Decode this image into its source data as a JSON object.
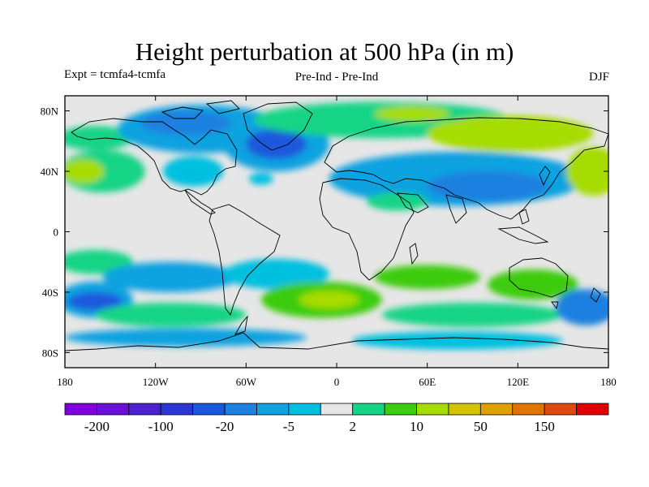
{
  "title": "Height perturbation at 500 hPa (in m)",
  "experiment": "Expt = tcmfa4-tcmfa",
  "comparison": "Pre-Ind - Pre-Ind",
  "season": "DJF",
  "map": {
    "lon_range": [
      -180,
      180
    ],
    "lat_range": [
      -90,
      90
    ],
    "x_tick_labels": [
      "180",
      "120W",
      "60W",
      "0",
      "60E",
      "120E",
      "180"
    ],
    "x_tick_lons": [
      -180,
      -120,
      -60,
      0,
      60,
      120,
      180
    ],
    "y_tick_labels": [
      "80N",
      "40N",
      "0",
      "40S",
      "80S"
    ],
    "y_tick_lats": [
      80,
      40,
      0,
      -40,
      -80
    ],
    "background_color": "#e6e6e6"
  },
  "colorbar": {
    "colors": [
      "#7f00dc",
      "#6a0ed8",
      "#4a20d0",
      "#2a36d6",
      "#1a58dc",
      "#1e80e0",
      "#10a2e0",
      "#00c0e0",
      "#e6e6e6",
      "#14d486",
      "#3ccc10",
      "#a6dc00",
      "#d4c400",
      "#e0a000",
      "#e07400",
      "#e04a10",
      "#e00000"
    ],
    "labels": [
      "-200",
      "-100",
      "-20",
      "-5",
      "2",
      "10",
      "50",
      "150"
    ]
  },
  "anomalies": [
    {
      "lon": -160,
      "lat": 62,
      "rx": 25,
      "ry": 8,
      "color": "#14d486"
    },
    {
      "lon": -155,
      "lat": 40,
      "rx": 28,
      "ry": 14,
      "color": "#14d486"
    },
    {
      "lon": -168,
      "lat": 40,
      "rx": 14,
      "ry": 8,
      "color": "#a6dc00"
    },
    {
      "lon": -90,
      "lat": 68,
      "rx": 55,
      "ry": 16,
      "color": "#10a2e0"
    },
    {
      "lon": -100,
      "lat": 72,
      "rx": 30,
      "ry": 8,
      "color": "#1e80e0"
    },
    {
      "lon": -40,
      "lat": 58,
      "rx": 35,
      "ry": 18,
      "color": "#10a2e0"
    },
    {
      "lon": -40,
      "lat": 58,
      "rx": 20,
      "ry": 10,
      "color": "#1a58dc"
    },
    {
      "lon": -95,
      "lat": 40,
      "rx": 20,
      "ry": 10,
      "color": "#00c0e0"
    },
    {
      "lon": -50,
      "lat": 35,
      "rx": 8,
      "ry": 4,
      "color": "#00c0e0"
    },
    {
      "lon": 30,
      "lat": 74,
      "rx": 85,
      "ry": 12,
      "color": "#14d486"
    },
    {
      "lon": 50,
      "lat": 78,
      "rx": 25,
      "ry": 5,
      "color": "#a6dc00"
    },
    {
      "lon": 115,
      "lat": 65,
      "rx": 55,
      "ry": 12,
      "color": "#a6dc00"
    },
    {
      "lon": 80,
      "lat": 35,
      "rx": 85,
      "ry": 18,
      "color": "#10a2e0"
    },
    {
      "lon": 100,
      "lat": 30,
      "rx": 40,
      "ry": 10,
      "color": "#1e80e0"
    },
    {
      "lon": 40,
      "lat": 20,
      "rx": 20,
      "ry": 6,
      "color": "#14d486"
    },
    {
      "lon": 170,
      "lat": 40,
      "rx": 18,
      "ry": 16,
      "color": "#a6dc00"
    },
    {
      "lon": -160,
      "lat": -20,
      "rx": 25,
      "ry": 8,
      "color": "#14d486"
    },
    {
      "lon": -110,
      "lat": -30,
      "rx": 45,
      "ry": 10,
      "color": "#10a2e0"
    },
    {
      "lon": -160,
      "lat": -45,
      "rx": 25,
      "ry": 12,
      "color": "#10a2e0"
    },
    {
      "lon": -160,
      "lat": -46,
      "rx": 18,
      "ry": 6,
      "color": "#1a58dc"
    },
    {
      "lon": -110,
      "lat": -55,
      "rx": 50,
      "ry": 8,
      "color": "#14d486"
    },
    {
      "lon": -40,
      "lat": -28,
      "rx": 35,
      "ry": 10,
      "color": "#00c0e0"
    },
    {
      "lon": -10,
      "lat": -45,
      "rx": 40,
      "ry": 12,
      "color": "#3ccc10"
    },
    {
      "lon": -5,
      "lat": -45,
      "rx": 20,
      "ry": 6,
      "color": "#a6dc00"
    },
    {
      "lon": 60,
      "lat": -30,
      "rx": 35,
      "ry": 8,
      "color": "#3ccc10"
    },
    {
      "lon": 90,
      "lat": -55,
      "rx": 60,
      "ry": 8,
      "color": "#14d486"
    },
    {
      "lon": 130,
      "lat": -35,
      "rx": 30,
      "ry": 10,
      "color": "#3ccc10"
    },
    {
      "lon": 165,
      "lat": -50,
      "rx": 20,
      "ry": 12,
      "color": "#1e80e0"
    },
    {
      "lon": -100,
      "lat": -70,
      "rx": 80,
      "ry": 6,
      "color": "#10a2e0"
    },
    {
      "lon": 80,
      "lat": -72,
      "rx": 70,
      "ry": 6,
      "color": "#00c0e0"
    }
  ]
}
